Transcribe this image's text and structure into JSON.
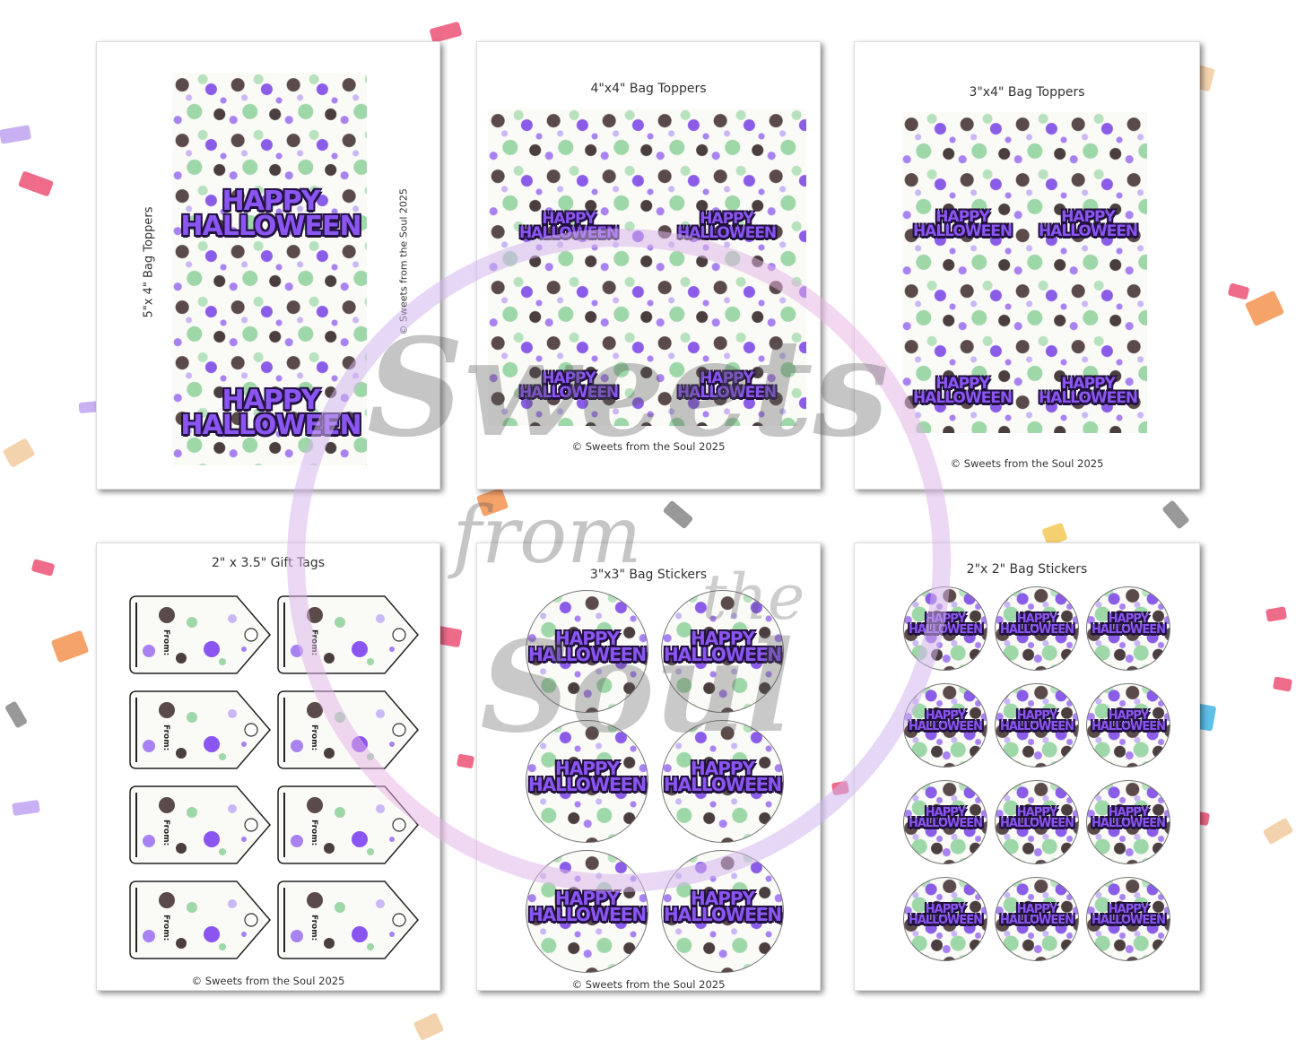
{
  "sheets": {
    "bag_5x4": {
      "label": "5\"x 4\" Bag Toppers",
      "copyright": "© Sweets from the Soul 2025"
    },
    "bag_4x4": {
      "title": "4\"x4\" Bag Toppers",
      "copyright": "© Sweets from the Soul 2025"
    },
    "bag_3x4": {
      "title": "3\"x4\" Bag Toppers",
      "copyright": "© Sweets from the Soul 2025"
    },
    "gift_tags": {
      "title": "2\" x 3.5\" Gift Tags",
      "copyright": "© Sweets from the Soul 2025",
      "from_label": "From:"
    },
    "stickers_3x3": {
      "title": "3\"x3\" Bag Stickers",
      "copyright": "© Sweets from the Soul 2025"
    },
    "stickers_2x2": {
      "title": "2\"x 2\" Bag Stickers"
    }
  },
  "artwork": {
    "line1": "HAPPY",
    "line2": "HALLOWEEN"
  },
  "watermark": {
    "line1": "Sweets",
    "line2": "from",
    "line3": "the",
    "line4": "Soul"
  },
  "colors": {
    "purple": "#8a55f0",
    "outline": "#22123f",
    "green": "#9ed7a8",
    "ring": "#d7c9f6"
  }
}
